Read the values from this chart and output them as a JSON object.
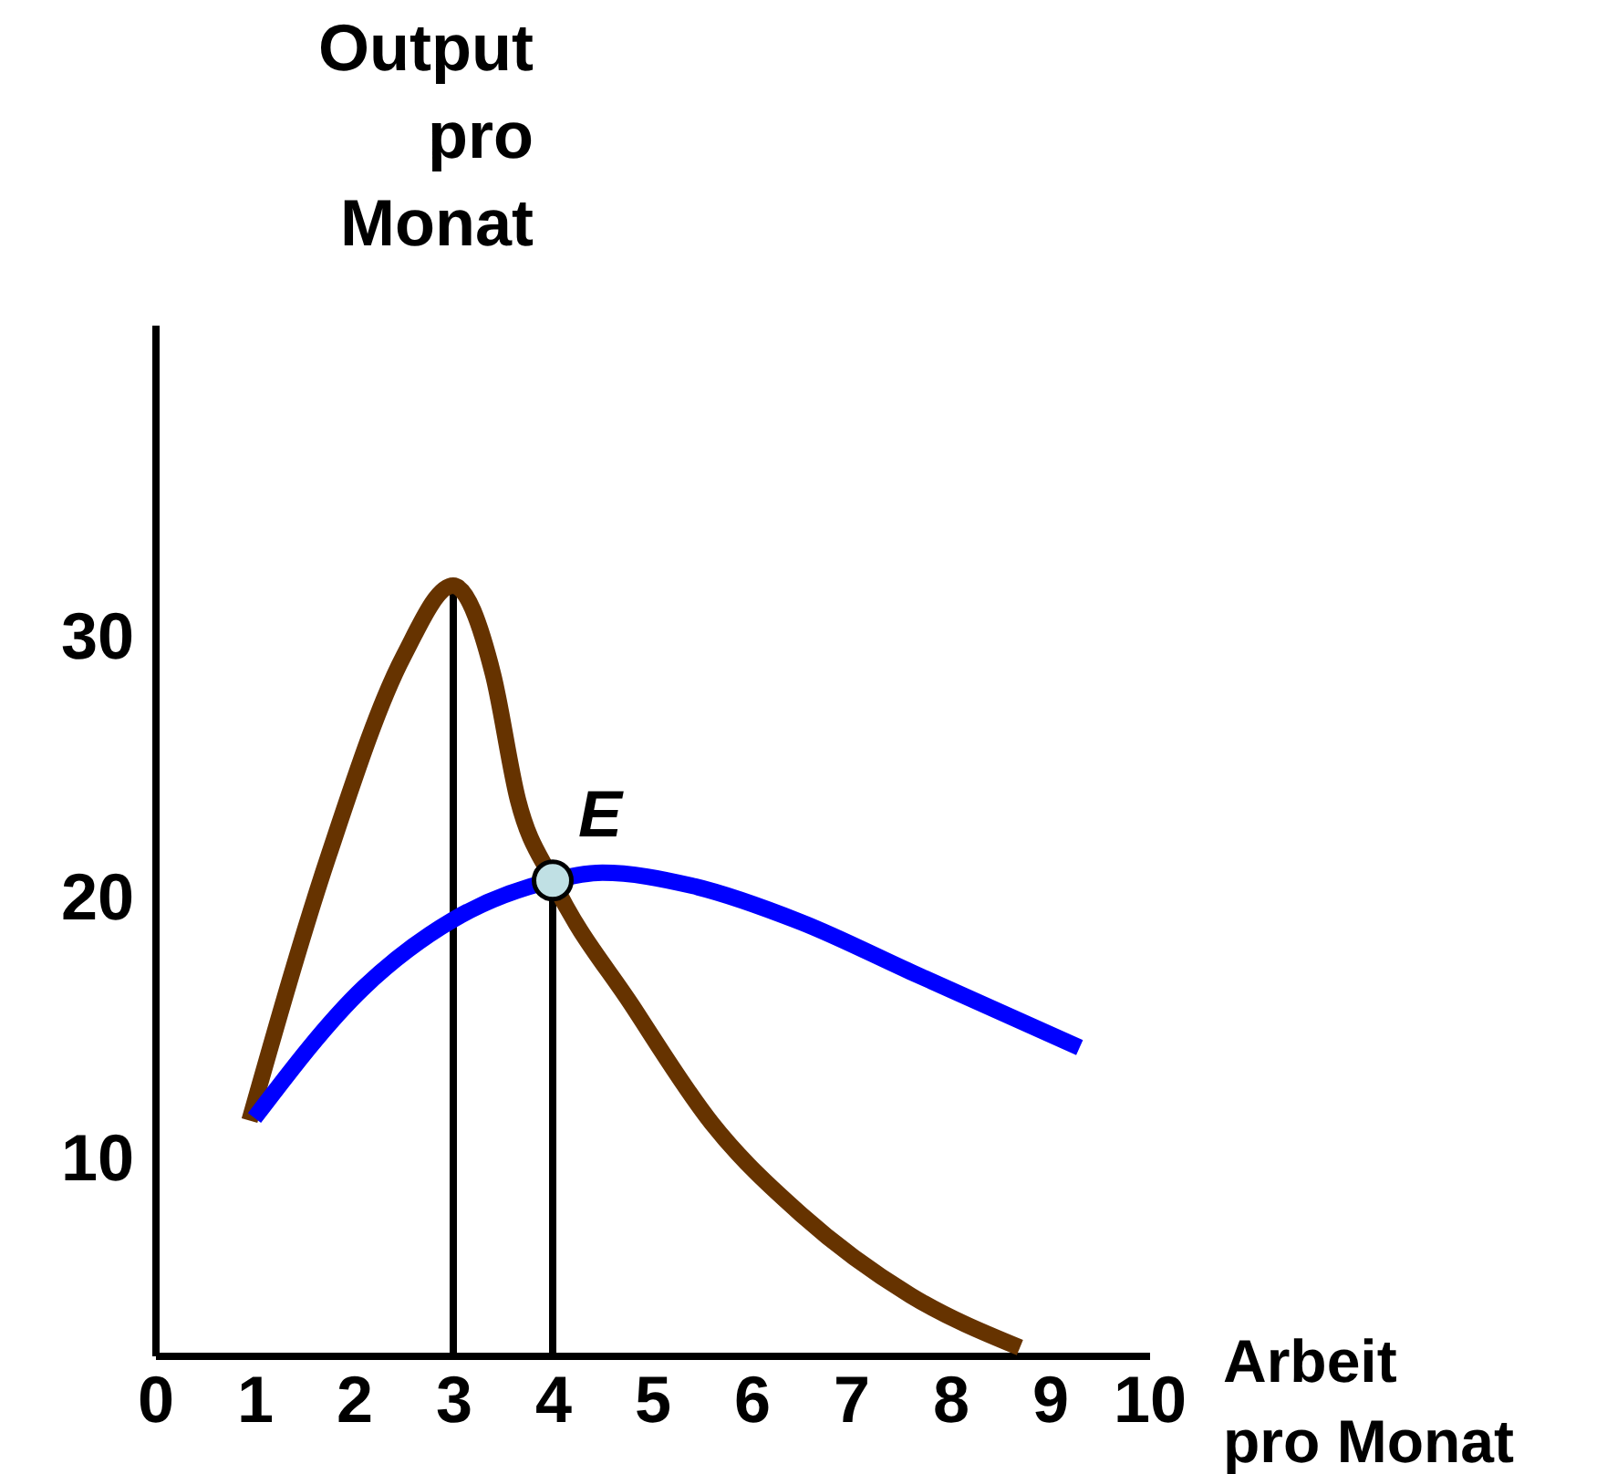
{
  "chart_data": {
    "type": "line",
    "xlabel": "Arbeit pro Monat",
    "ylabel": "Output pro Monat",
    "xlim": [
      0,
      10
    ],
    "ylim": [
      2.5,
      42
    ],
    "xticks": [
      0,
      1,
      2,
      3,
      4,
      5,
      6,
      7,
      8,
      9,
      10
    ],
    "yticks": [
      10,
      20,
      30
    ],
    "marker": "none",
    "line_style": "solid",
    "series": [
      {
        "color": "#663300",
        "x": [
          0.95,
          1.75,
          2.5,
          3,
          3.4,
          3.65,
          4,
          4.8,
          5.6,
          6.5,
          7.6,
          8.7
        ],
        "values": [
          11.5,
          21.7,
          29.3,
          32,
          28.6,
          23.8,
          20.7,
          15.9,
          11.4,
          7.9,
          4.8,
          2.8
        ]
      },
      {
        "color": "#0000ff",
        "x": [
          1,
          2.1,
          3,
          4,
          4.5,
          5.4,
          6.5,
          7.6,
          9.3
        ],
        "values": [
          11.6,
          16.6,
          19.2,
          20.7,
          21,
          20.5,
          19.1,
          17.2,
          14.3
        ]
      },
      {
        "type": "scatter",
        "marker": "circle",
        "color": "#c0e0e4",
        "x": [
          4
        ],
        "values": [
          20.7
        ]
      }
    ],
    "ref_lines": [
      {
        "axis": "x",
        "value": 3,
        "color": "#000000"
      },
      {
        "axis": "x",
        "value": 4,
        "color": "#000000"
      }
    ],
    "annotations": [
      {
        "text": "E",
        "x": 4,
        "y": 20.7
      }
    ]
  }
}
